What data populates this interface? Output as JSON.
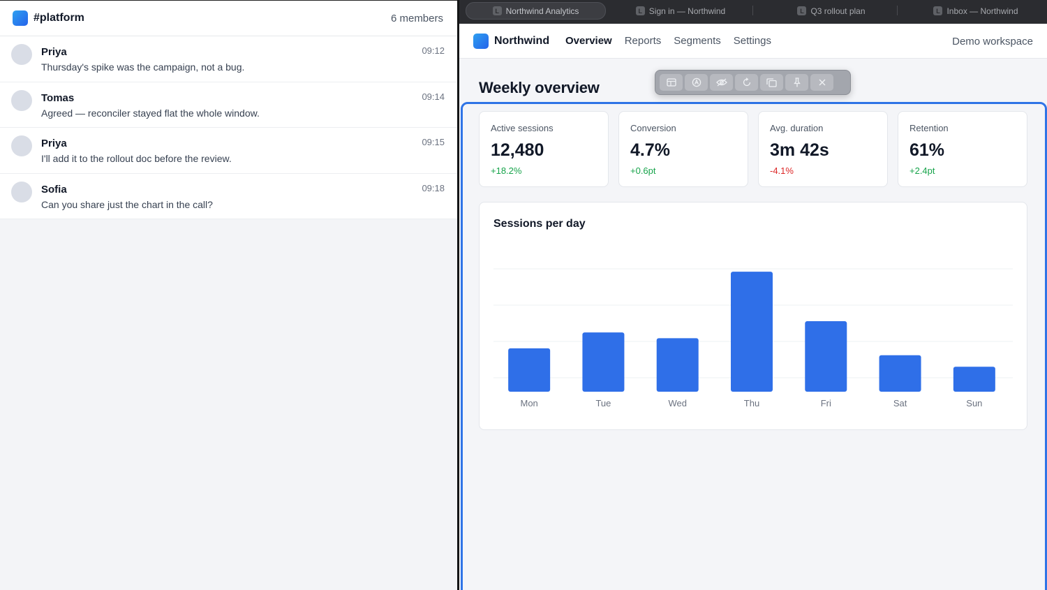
{
  "chat": {
    "channel": "#platform",
    "members": "6 members",
    "messages": [
      {
        "author": "Priya",
        "time": "09:12",
        "text": "Thursday's spike was the campaign, not a bug."
      },
      {
        "author": "Tomas",
        "time": "09:14",
        "text": "Agreed — reconciler stayed flat the whole window."
      },
      {
        "author": "Priya",
        "time": "09:15",
        "text": "I'll add it to the rollout doc before the review."
      },
      {
        "author": "Sofia",
        "time": "09:18",
        "text": "Can you share just the chart in the call?"
      }
    ]
  },
  "browser": {
    "tabs": [
      {
        "label": "Northwind Analytics",
        "favicon": "L",
        "active": true
      },
      {
        "label": "Sign in — Northwind",
        "favicon": "L",
        "active": false
      },
      {
        "label": "Q3 rollout plan",
        "favicon": "L",
        "active": false
      },
      {
        "label": "Inbox — Northwind",
        "favicon": "L",
        "active": false
      }
    ]
  },
  "app": {
    "brand": "Northwind",
    "nav": [
      "Overview",
      "Reports",
      "Segments",
      "Settings"
    ],
    "active_nav": "Overview",
    "workspace": "Demo workspace",
    "page_title": "Weekly overview"
  },
  "share_toolbar": {
    "icons": [
      "layout-icon",
      "annotate-icon",
      "hide-icon",
      "refresh-icon",
      "copy-icon",
      "pin-icon",
      "close-icon"
    ]
  },
  "kpis": [
    {
      "label": "Active sessions",
      "value": "12,480",
      "delta": "+18.2%",
      "trend": "up"
    },
    {
      "label": "Conversion",
      "value": "4.7%",
      "delta": "+0.6pt",
      "trend": "up"
    },
    {
      "label": "Avg. duration",
      "value": "3m 42s",
      "delta": "-4.1%",
      "trend": "down"
    },
    {
      "label": "Retention",
      "value": "61%",
      "delta": "+2.4pt",
      "trend": "up"
    }
  ],
  "colors": {
    "accent": "#2f74e6",
    "bar": "#2f6fe8",
    "positive": "#16a34a",
    "negative": "#dc2626"
  },
  "chart_data": {
    "type": "bar",
    "title": "Sessions per day",
    "categories": [
      "Mon",
      "Tue",
      "Wed",
      "Thu",
      "Fri",
      "Sat",
      "Sun"
    ],
    "values": [
      1200,
      1640,
      1480,
      3320,
      1950,
      1010,
      690
    ],
    "ylim": [
      0,
      3400
    ],
    "grid": true,
    "xlabel": "",
    "ylabel": ""
  }
}
